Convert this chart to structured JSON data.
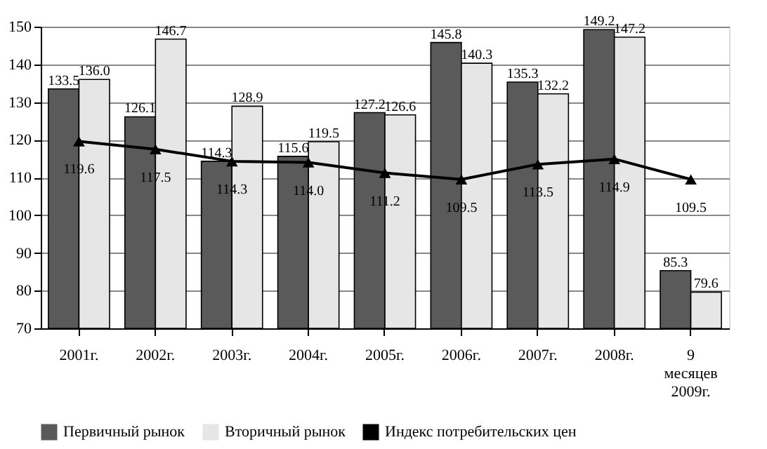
{
  "chart_data": {
    "type": "bar",
    "categories": [
      "2001г.",
      "2002г.",
      "2003г.",
      "2004г.",
      "2005г.",
      "2006г.",
      "2007г.",
      "2008г.",
      "9 месяцев 2009г."
    ],
    "series": [
      {
        "name": "Первичный рынок",
        "color": "#5a5a5a",
        "values": [
          133.5,
          126.1,
          114.3,
          115.6,
          127.2,
          145.8,
          135.3,
          149.2,
          85.3
        ],
        "value_labels": [
          "133.5",
          "126.1",
          "114.3",
          "115.6",
          "127.2",
          "145.8",
          "135.3",
          "149.2",
          "85.3"
        ]
      },
      {
        "name": "Вторичный рынок",
        "color": "#e6e6e6",
        "values": [
          136.0,
          146.7,
          128.9,
          119.5,
          126.6,
          140.3,
          132.2,
          147.2,
          79.6
        ],
        "value_labels": [
          "136.0",
          "146.7",
          "128.9",
          "119.5",
          "126.6",
          "140.3",
          "132.2",
          "147.2",
          "79.6"
        ]
      },
      {
        "name": "Индекс потребительских цен",
        "type": "line",
        "color": "#000000",
        "values": [
          119.6,
          117.5,
          114.3,
          114.0,
          111.2,
          109.5,
          113.5,
          114.9,
          109.5
        ],
        "value_labels": [
          "119.6",
          "117.5",
          "114.3",
          "114.0",
          "111.2",
          "109.5",
          "113.5",
          "114.9",
          "109.5"
        ]
      }
    ],
    "ylim": [
      70,
      150
    ],
    "yticks": [
      70,
      80,
      90,
      100,
      110,
      120,
      130,
      140,
      150
    ],
    "grid": "y",
    "legend": "bottom",
    "marker": "triangle",
    "line_style": "solid"
  }
}
